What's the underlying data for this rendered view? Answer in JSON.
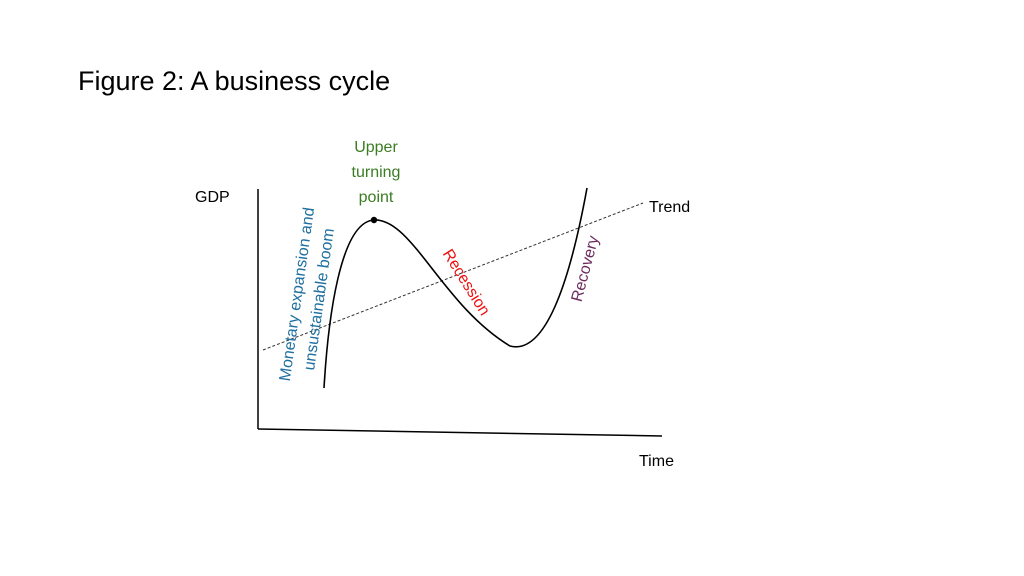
{
  "title": "Figure 2: A business cycle",
  "axes": {
    "y_label": "GDP",
    "x_label": "Time"
  },
  "trend": {
    "label": "Trend"
  },
  "peak": {
    "label_lines": [
      "Upper",
      "turning",
      "point"
    ]
  },
  "phases": {
    "boom": {
      "lines": [
        "Monetary expansion and",
        "unsustainable boom"
      ]
    },
    "recession": {
      "label": "Recession"
    },
    "recovery": {
      "label": "Recovery"
    }
  },
  "colors": {
    "axis": "#000000",
    "curve": "#000000",
    "trend": "#333333",
    "peak_label": "#3a7d22",
    "boom_label": "#1f6f9f",
    "recession_label": "#ee1111",
    "recovery_label": "#6b2a5f"
  }
}
